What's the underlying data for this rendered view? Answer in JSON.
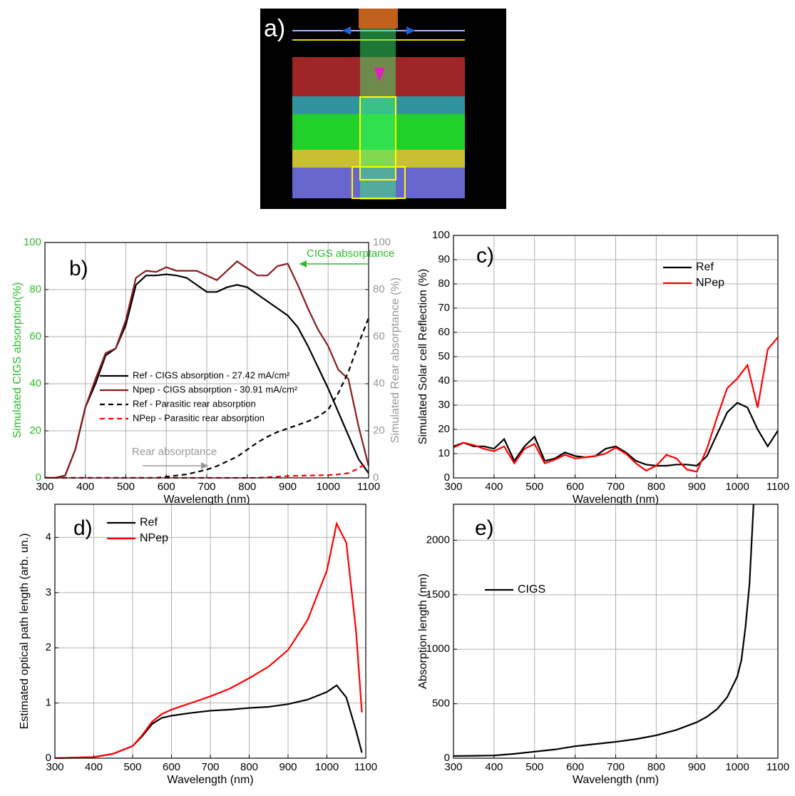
{
  "panel_a": {
    "label": "a)"
  },
  "chart_data": [
    {
      "type": "line",
      "panel_label": "b)",
      "xlabel": "Wavelength (nm)",
      "ylabel": "Simulated CIGS absorption(%)",
      "y2label": "Simulated Rear  absorptance (%)",
      "y_color": "#2dbb2d",
      "y2_color": "#999999",
      "x": [
        300,
        325,
        350,
        375,
        400,
        425,
        450,
        475,
        500,
        525,
        550,
        575,
        600,
        625,
        650,
        675,
        700,
        725,
        750,
        775,
        800,
        825,
        850,
        875,
        900,
        925,
        950,
        975,
        1000,
        1025,
        1050,
        1075,
        1100
      ],
      "series": [
        {
          "name": "Ref - CIGS absorption - 27.42 mA/cm²",
          "color": "#000000",
          "dash": false,
          "values": [
            0,
            0,
            1,
            12,
            30,
            40,
            52,
            55,
            65,
            82,
            86,
            86,
            86.5,
            86,
            85,
            82,
            79,
            79,
            81,
            82,
            81,
            78,
            75,
            72,
            69,
            64,
            56,
            47,
            38,
            28,
            18,
            8,
            2
          ]
        },
        {
          "name": "Npep - CIGS absorption - 30.91 mA/cm²",
          "color": "#8b1a1a",
          "dash": false,
          "values": [
            0,
            0,
            1,
            12,
            30,
            42,
            53,
            55,
            67,
            85,
            88,
            87.5,
            89.5,
            88,
            88,
            88,
            86,
            84,
            88,
            92,
            89,
            86,
            86,
            90,
            91,
            82,
            72,
            63,
            56,
            46,
            42,
            22,
            5
          ]
        },
        {
          "name": "Ref - Parasitic rear absorption",
          "color": "#000000",
          "dash": true,
          "axis": "y2",
          "values": [
            0,
            0,
            0,
            0,
            0,
            0,
            0,
            0,
            0,
            0,
            0,
            0,
            0.5,
            1,
            1.5,
            2.5,
            3.5,
            5,
            7,
            9,
            12,
            15,
            17.5,
            19.5,
            21,
            22.5,
            24,
            26,
            29,
            36,
            45,
            57,
            68
          ]
        },
        {
          "name": "NPep - Parasitic rear absorption",
          "color": "#ff0000",
          "dash": true,
          "axis": "y2",
          "values": [
            0,
            0,
            0,
            0,
            0,
            0,
            0,
            0,
            0,
            0,
            0,
            0,
            0,
            0,
            0,
            0,
            0,
            0,
            0,
            0,
            0,
            0,
            0.3,
            0.5,
            0.8,
            0.9,
            1,
            1.1,
            1.2,
            1.5,
            2,
            4,
            7
          ]
        }
      ],
      "annotations": [
        {
          "text": "CIGS absorptance",
          "color": "#2dbb2d"
        },
        {
          "text": "Rear absorptance",
          "color": "#999999"
        }
      ],
      "xlim": [
        300,
        1100
      ],
      "xticks": [
        300,
        400,
        500,
        600,
        700,
        800,
        900,
        1000,
        1100
      ],
      "ylim": [
        0,
        100
      ],
      "yticks": [
        0,
        20,
        40,
        60,
        80,
        100
      ],
      "y2lim": [
        0,
        100
      ],
      "y2ticks": [
        0,
        20,
        40,
        60,
        80,
        100
      ],
      "grid": true
    },
    {
      "type": "line",
      "panel_label": "c)",
      "xlabel": "Wavelength (nm)",
      "ylabel": "Simulated Solar cell Reflection (%)",
      "x": [
        300,
        325,
        350,
        375,
        400,
        425,
        450,
        475,
        500,
        525,
        550,
        575,
        600,
        625,
        650,
        675,
        700,
        725,
        750,
        775,
        800,
        825,
        850,
        875,
        900,
        925,
        950,
        975,
        1000,
        1025,
        1050,
        1075,
        1100
      ],
      "series": [
        {
          "name": "Ref",
          "color": "#000000",
          "dash": false,
          "values": [
            13,
            14.5,
            13,
            13,
            12,
            16,
            7,
            13,
            17,
            7,
            8,
            10.5,
            9,
            8.5,
            9,
            12,
            13,
            10.5,
            7,
            5.5,
            5,
            5,
            5.5,
            5.5,
            5,
            9,
            18,
            27,
            31,
            29,
            20,
            13,
            19.5
          ]
        },
        {
          "name": "NPep",
          "color": "#ff0000",
          "dash": false,
          "values": [
            12.5,
            14.5,
            13.5,
            12,
            11,
            13,
            6,
            12,
            14,
            6,
            7.5,
            9.5,
            8,
            8.5,
            9,
            10,
            12.5,
            10,
            6,
            3,
            5,
            9.5,
            8,
            3.5,
            2.5,
            12,
            25,
            37,
            41,
            46.5,
            29,
            53,
            58
          ]
        }
      ],
      "xlim": [
        300,
        1100
      ],
      "xticks": [
        300,
        400,
        500,
        600,
        700,
        800,
        900,
        1000,
        1100
      ],
      "ylim": [
        0,
        100
      ],
      "yticks": [
        0,
        10,
        20,
        30,
        40,
        50,
        60,
        70,
        80,
        90,
        100
      ],
      "grid": true
    },
    {
      "type": "line",
      "panel_label": "d)",
      "xlabel": "Wavelength (nm)",
      "ylabel": "Estimated optical path length (arb. un.)",
      "x": [
        300,
        350,
        400,
        450,
        500,
        525,
        550,
        575,
        600,
        650,
        700,
        750,
        800,
        850,
        900,
        950,
        1000,
        1025,
        1050,
        1075,
        1090
      ],
      "series": [
        {
          "name": "Ref",
          "color": "#000000",
          "dash": false,
          "values": [
            0,
            0.01,
            0.02,
            0.08,
            0.22,
            0.4,
            0.62,
            0.73,
            0.77,
            0.82,
            0.86,
            0.88,
            0.91,
            0.93,
            0.98,
            1.06,
            1.2,
            1.32,
            1.1,
            0.5,
            0.1
          ]
        },
        {
          "name": "NPep",
          "color": "#ff0000",
          "dash": false,
          "values": [
            0,
            0.01,
            0.02,
            0.08,
            0.22,
            0.42,
            0.66,
            0.8,
            0.88,
            1.0,
            1.12,
            1.26,
            1.45,
            1.66,
            1.96,
            2.5,
            3.4,
            4.25,
            3.9,
            2.3,
            0.83
          ]
        }
      ],
      "xlim": [
        300,
        1100
      ],
      "xticks": [
        300,
        400,
        500,
        600,
        700,
        800,
        900,
        1000,
        1100
      ],
      "ylim": [
        0,
        4.6
      ],
      "yticks": [
        0,
        1,
        2,
        3,
        4
      ],
      "grid": true
    },
    {
      "type": "line",
      "panel_label": "e)",
      "xlabel": "Wavelength (nm)",
      "ylabel": "Absorption length (nm)",
      "x": [
        300,
        350,
        400,
        450,
        500,
        550,
        600,
        650,
        700,
        750,
        800,
        850,
        900,
        925,
        950,
        975,
        1000,
        1010,
        1020,
        1030,
        1040
      ],
      "series": [
        {
          "name": "CIGS",
          "color": "#000000",
          "dash": false,
          "values": [
            20,
            22,
            25,
            40,
            60,
            80,
            110,
            130,
            150,
            175,
            210,
            260,
            330,
            380,
            450,
            560,
            750,
            900,
            1200,
            1600,
            2330
          ]
        }
      ],
      "xlim": [
        300,
        1100
      ],
      "xticks": [
        300,
        400,
        500,
        600,
        700,
        800,
        900,
        1000,
        1100
      ],
      "ylim": [
        0,
        2330
      ],
      "yticks": [
        0,
        500,
        1000,
        1500,
        2000
      ],
      "grid": true
    }
  ]
}
